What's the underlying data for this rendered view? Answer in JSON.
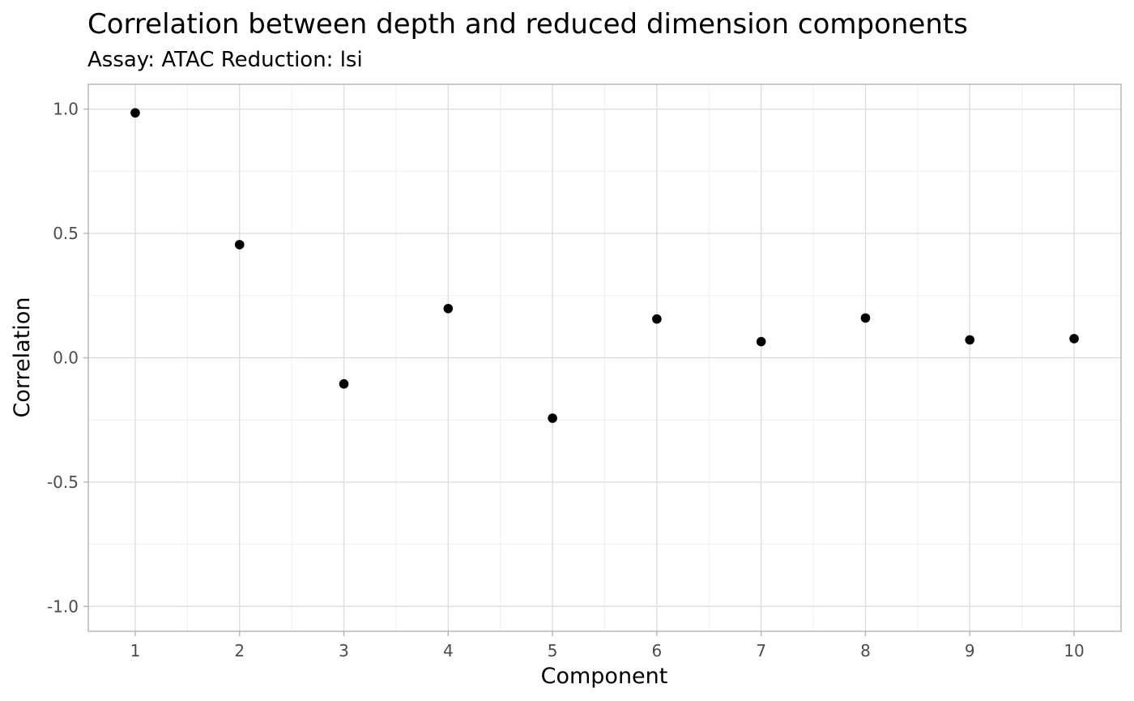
{
  "chart_data": {
    "type": "scatter",
    "title": "Correlation between depth and reduced dimension components",
    "subtitle": "Assay: ATAC\tReduction: lsi",
    "xlabel": "Component",
    "ylabel": "Correlation",
    "x": [
      1,
      2,
      3,
      4,
      5,
      6,
      7,
      8,
      9,
      10
    ],
    "y": [
      0.985,
      0.455,
      -0.105,
      0.198,
      -0.243,
      0.156,
      0.065,
      0.16,
      0.072,
      0.077
    ],
    "xlim": [
      0.55,
      10.45
    ],
    "ylim": [
      -1.1,
      1.1
    ],
    "xticks": [
      "1",
      "2",
      "3",
      "4",
      "5",
      "6",
      "7",
      "8",
      "9",
      "10"
    ],
    "yticks": [
      {
        "value": 1.0,
        "label": "1.0"
      },
      {
        "value": 0.5,
        "label": "0.5"
      },
      {
        "value": 0.0,
        "label": "0.0"
      },
      {
        "value": -0.5,
        "label": "-0.5"
      },
      {
        "value": -1.0,
        "label": "-1.0"
      }
    ],
    "grid": true,
    "legend": "none",
    "point_color": "#000000"
  }
}
